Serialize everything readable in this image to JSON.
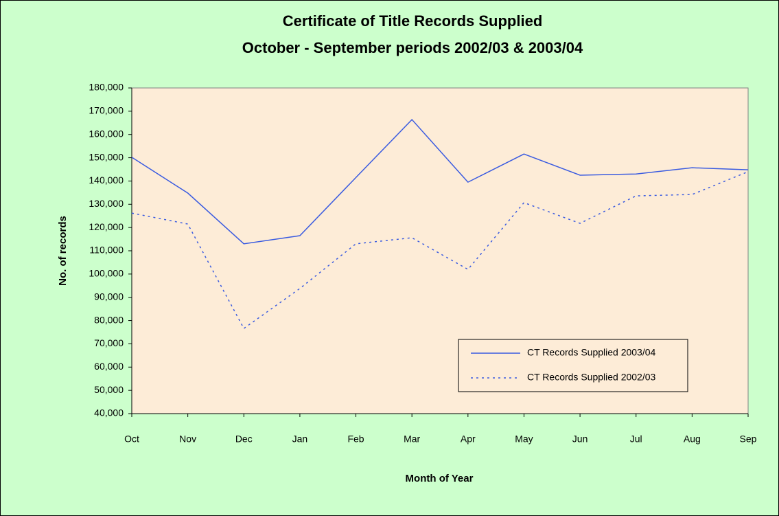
{
  "chart_data": {
    "type": "line",
    "title": "Certificate of Title Records Supplied",
    "subtitle": "October - September periods 2002/03 & 2003/04",
    "x_label": "Month of Year",
    "y_label": "No. of records",
    "categories": [
      "Oct",
      "Nov",
      "Dec",
      "Jan",
      "Feb",
      "Mar",
      "Apr",
      "May",
      "Jun",
      "Jul",
      "Aug",
      "Sep"
    ],
    "series": [
      {
        "name": "CT Records Supplied 2003/04",
        "color": "#3a5be0",
        "line_style": "solid",
        "values": [
          150200,
          134800,
          113000,
          116500,
          141500,
          166400,
          139500,
          151600,
          142500,
          143000,
          145700,
          144800
        ]
      },
      {
        "name": "CT Records Supplied 2002/03",
        "color": "#3a5be0",
        "line_style": "dotted",
        "values": [
          126200,
          121500,
          76600,
          93800,
          113000,
          115600,
          102000,
          130700,
          121800,
          133600,
          134200,
          144000
        ]
      }
    ],
    "ylim": [
      40000,
      180000
    ],
    "yticks": [
      {
        "value": 40000,
        "label": "40,000"
      },
      {
        "value": 50000,
        "label": "50,000"
      },
      {
        "value": 60000,
        "label": "60,000"
      },
      {
        "value": 70000,
        "label": "70,000"
      },
      {
        "value": 80000,
        "label": "80,000"
      },
      {
        "value": 90000,
        "label": "90,000"
      },
      {
        "value": 100000,
        "label": "100,000"
      },
      {
        "value": 110000,
        "label": "110,000"
      },
      {
        "value": 120000,
        "label": "120,000"
      },
      {
        "value": 130000,
        "label": "130,000"
      },
      {
        "value": 140000,
        "label": "140,000"
      },
      {
        "value": 150000,
        "label": "150,000"
      },
      {
        "value": 160000,
        "label": "160,000"
      },
      {
        "value": 170000,
        "label": "170,000"
      },
      {
        "value": 180000,
        "label": "180,000"
      }
    ],
    "legend": "lower right",
    "grid": false
  }
}
